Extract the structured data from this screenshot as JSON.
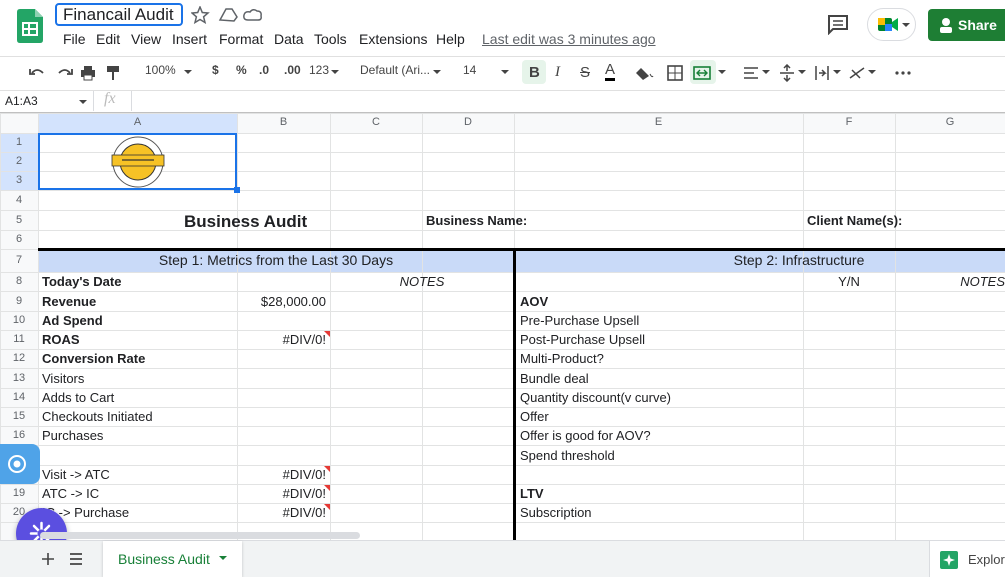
{
  "app": {
    "doc_title": "Financail Audit",
    "menu": [
      "File",
      "Edit",
      "View",
      "Insert",
      "Format",
      "Data",
      "Tools",
      "Extensions",
      "Help"
    ],
    "last_edit": "Last edit was 3 minutes ago",
    "share": "Share",
    "explore": "Explore"
  },
  "toolbar": {
    "zoom": "100%",
    "currency": "$",
    "percent": "%",
    "decrease_decimal": ".0",
    "increase_decimal": ".00",
    "number_format": "123",
    "font": "Default (Ari...",
    "font_size": "14",
    "bold": "B",
    "italic": "I",
    "strike": "S",
    "text_color": "A"
  },
  "formula_bar": {
    "name_box": "A1:A3",
    "fx": "fx"
  },
  "sheet": {
    "columns": [
      "A",
      "B",
      "C",
      "D",
      "E",
      "F",
      "G"
    ],
    "row_numbers": [
      1,
      2,
      3,
      4,
      5,
      6,
      7,
      8,
      9,
      10,
      11,
      12,
      13,
      14,
      15,
      16,
      null,
      null,
      19,
      20
    ],
    "title": "Business Audit",
    "business_name": "Business Name:",
    "client_names": "Client Name(s):",
    "step1_header": "Step 1: Metrics from the Last 30 Days",
    "step2_header": "Step 2: Infrastructure",
    "notes_header": "NOTES",
    "yn_header": "Y/N",
    "notes_header_2": "NOTES",
    "metrics": [
      {
        "label": "Today's Date",
        "bold": true
      },
      {
        "label": "Revenue",
        "value": "$28,000.00",
        "bold": true
      },
      {
        "label": "Ad Spend",
        "bold": true
      },
      {
        "label": "ROAS",
        "value": "#DIV/0!",
        "bold": true,
        "flag": true
      },
      {
        "label": "Conversion Rate",
        "bold": true
      },
      {
        "label": "Visitors"
      },
      {
        "label": "Adds to Cart"
      },
      {
        "label": "Checkouts Initiated"
      },
      {
        "label": "Purchases"
      },
      {
        "label": null
      },
      {
        "label": "Visit -> ATC",
        "value": "#DIV/0!",
        "flag": true
      },
      {
        "label": "ATC -> IC",
        "value": "#DIV/0!",
        "flag": true
      },
      {
        "label": "IC -> Purchase",
        "value": "#DIV/0!",
        "flag": true
      }
    ],
    "infrastructure": [
      {
        "label": null
      },
      {
        "label": "AOV",
        "bold": true
      },
      {
        "label": "Pre-Purchase Upsell"
      },
      {
        "label": "Post-Purchase Upsell"
      },
      {
        "label": "Multi-Product?"
      },
      {
        "label": "Bundle deal"
      },
      {
        "label": "Quantity discount(v curve)"
      },
      {
        "label": "Offer"
      },
      {
        "label": "Offer is good for AOV?"
      },
      {
        "label": "Spend threshold"
      },
      {
        "label": null
      },
      {
        "label": "LTV",
        "bold": true
      },
      {
        "label": "Subscription"
      }
    ]
  },
  "tabs": {
    "active": "Business Audit"
  }
}
